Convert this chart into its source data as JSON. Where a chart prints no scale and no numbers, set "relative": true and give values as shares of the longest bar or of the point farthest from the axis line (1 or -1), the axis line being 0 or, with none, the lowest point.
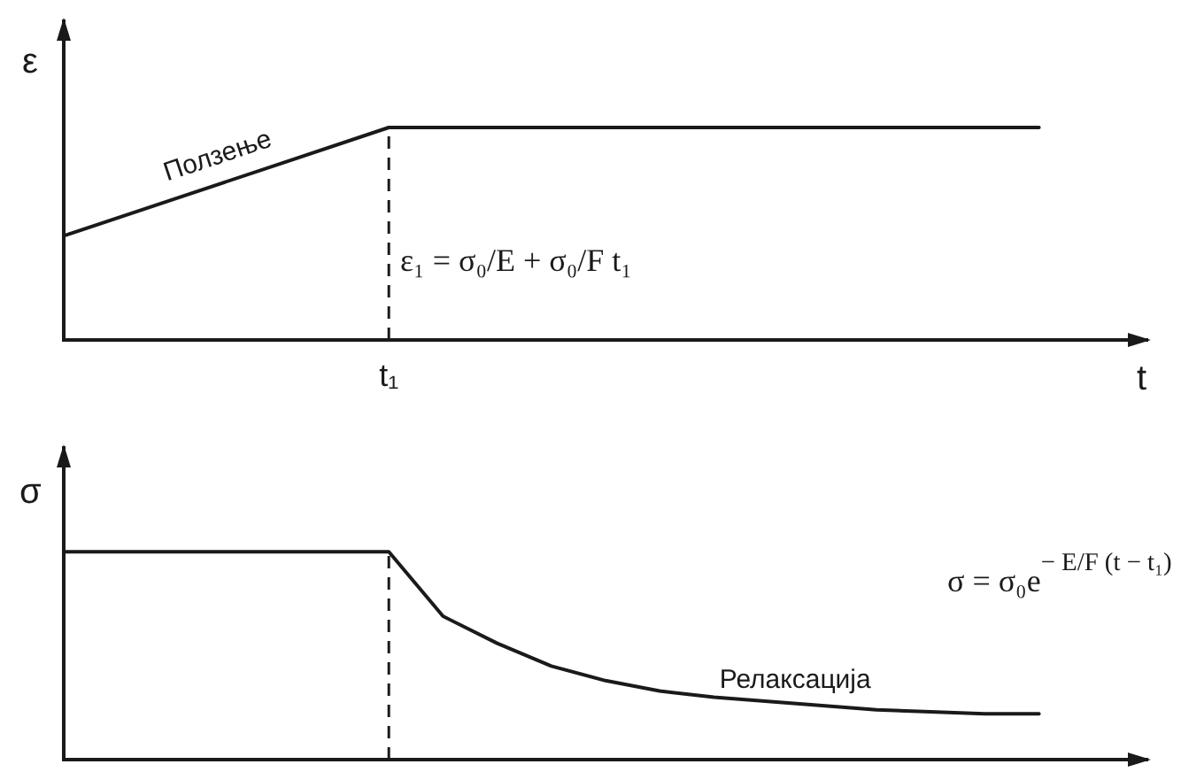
{
  "chart_data": [
    {
      "type": "line",
      "ylabel": "ε",
      "xlabel": "t",
      "categories": [
        null,
        null,
        null,
        null,
        null,
        null,
        null,
        null,
        null,
        null,
        null
      ],
      "relative": true,
      "series": [
        {
          "name": "Ползење",
          "color": "#1a1a1a",
          "values": [
            0.49,
            0.66,
            0.83,
            1,
            1,
            1,
            1,
            1,
            1,
            1,
            null
          ]
        }
      ],
      "annotations": [
        "ε₁ = σ₀/E + σ₀/F t₁",
        "t₁"
      ]
    },
    {
      "type": "line",
      "ylabel": "σ",
      "categories": [
        null,
        null,
        null,
        null,
        null,
        null,
        null,
        null,
        null,
        null,
        null,
        null,
        null,
        null,
        null,
        null,
        null,
        null,
        null,
        null,
        null
      ],
      "relative": true,
      "series": [
        {
          "name": "Релаксација",
          "color": "#1a1a1a",
          "values": [
            1,
            1,
            1,
            1,
            1,
            1,
            1,
            0.69,
            0.56,
            0.45,
            0.38,
            0.33,
            0.3,
            0.28,
            0.26,
            0.24,
            0.23,
            0.22,
            0.22,
            null,
            null
          ]
        }
      ],
      "annotations": [
        "σ = σ₀e$^{− E/F (t − t₁)}$"
      ]
    }
  ]
}
